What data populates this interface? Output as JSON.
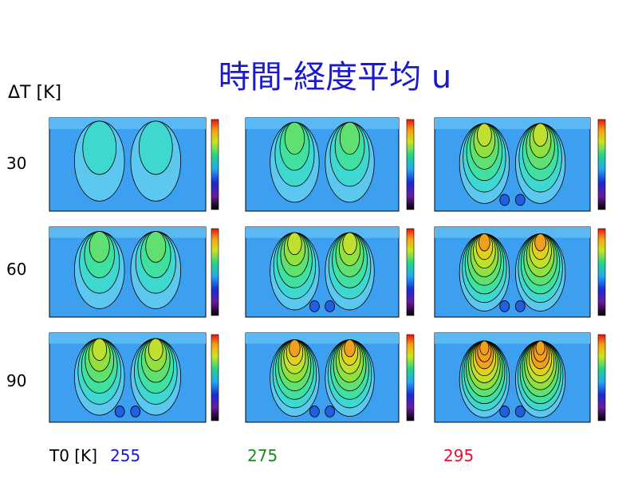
{
  "title": "時間-経度平均 u",
  "row_axis_label": "ΔT [K]",
  "rows": [
    "30",
    "60",
    "90"
  ],
  "column_axis_label": "T0 [K]",
  "columns": [
    "255",
    "275",
    "295"
  ]
}
